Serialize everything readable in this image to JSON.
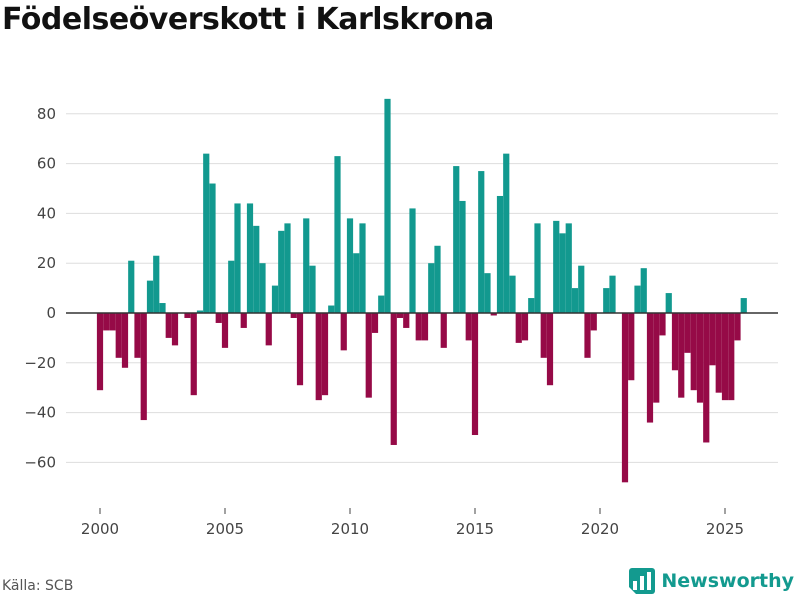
{
  "title": "Födelseöverskott i Karlskrona",
  "source": "Källa: SCB",
  "brand": {
    "name": "Newsworthy"
  },
  "colors": {
    "positive": "#12998f",
    "negative": "#960a47",
    "grid": "#dddddd",
    "zero": "#333333"
  },
  "chart_data": {
    "type": "bar",
    "title": "Födelseöverskott i Karlskrona",
    "xlabel": "",
    "ylabel": "",
    "frequency": "monthly, every second month",
    "x_start": 2000.0,
    "x_step": 0.25,
    "xlim": [
      1999.0,
      2027.0
    ],
    "ylim": [
      -72,
      90
    ],
    "x_ticks": [
      2000,
      2005,
      2010,
      2015,
      2020,
      2025
    ],
    "y_ticks": [
      -60,
      -40,
      -20,
      0,
      20,
      40,
      60,
      80
    ],
    "grid": true,
    "values": [
      -31,
      -7,
      -7,
      -18,
      -22,
      21,
      -18,
      -43,
      13,
      23,
      4,
      -10,
      -13,
      0,
      -2,
      -33,
      1,
      64,
      52,
      -4,
      -14,
      21,
      44,
      -6,
      44,
      35,
      20,
      -13,
      11,
      33,
      36,
      -2,
      -29,
      38,
      19,
      -35,
      -33,
      3,
      63,
      -15,
      38,
      24,
      36,
      -34,
      -8,
      7,
      86,
      -53,
      -2,
      -6,
      42,
      -11,
      -11,
      20,
      27,
      -14,
      0,
      59,
      45,
      -11,
      -49,
      57,
      16,
      -1,
      47,
      64,
      15,
      -12,
      -11,
      6,
      36,
      -18,
      -29,
      37,
      32,
      36,
      10,
      19,
      -18,
      -7,
      0,
      10,
      15,
      0,
      -68,
      -27,
      11,
      18,
      -44,
      -36,
      -9,
      8,
      -23,
      -34,
      -16,
      -31,
      -36,
      -52,
      -21,
      -32,
      -35,
      -35,
      -11,
      6
    ]
  }
}
